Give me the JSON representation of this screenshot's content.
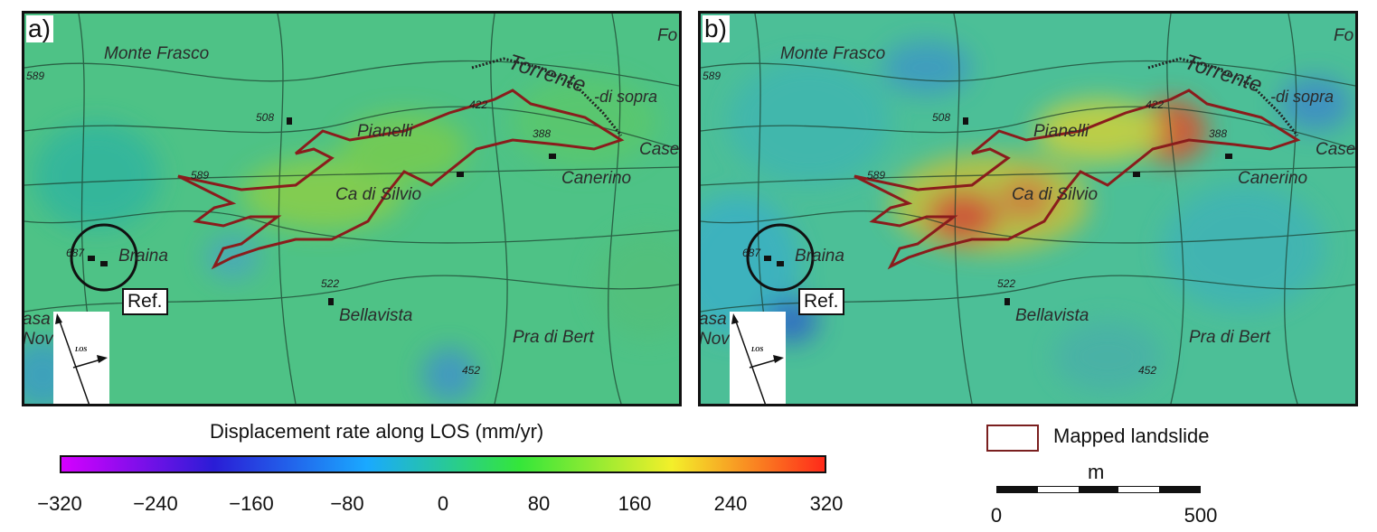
{
  "panels": [
    {
      "label": "a)",
      "landslide_color": "#8a1c1c"
    },
    {
      "label": "b)",
      "landslide_color": "#8a1c1c"
    }
  ],
  "map_labels": {
    "places": [
      "Monte Frasco",
      "Pianelli",
      "Ca di Silvio",
      "Canerino",
      "Braina",
      "Bellavista",
      "Pra di Bert",
      "Fo",
      "Case",
      "asa",
      "Nov"
    ],
    "river": "Torrente",
    "river_sub": "-di sopra",
    "elevations": [
      "589",
      "508",
      "422",
      "388",
      "589",
      "687",
      "522",
      "452"
    ],
    "reference": "Ref.",
    "los": "LOS"
  },
  "colorbar": {
    "title": "Displacement rate along LOS (mm/yr)",
    "ticks": [
      "−320",
      "−240",
      "−160",
      "−80",
      "0",
      "80",
      "160",
      "240",
      "320"
    ],
    "range": [
      -320,
      320
    ],
    "colors": [
      "#d600ff",
      "#2a1dd6",
      "#1aa9ff",
      "#34e63a",
      "#f3ef2a",
      "#ff2a1a"
    ]
  },
  "legend": {
    "mapped_landslide": "Mapped landslide",
    "swatch_color": "#7a1f1f"
  },
  "scale": {
    "unit": "m",
    "start": "0",
    "end": "500"
  }
}
